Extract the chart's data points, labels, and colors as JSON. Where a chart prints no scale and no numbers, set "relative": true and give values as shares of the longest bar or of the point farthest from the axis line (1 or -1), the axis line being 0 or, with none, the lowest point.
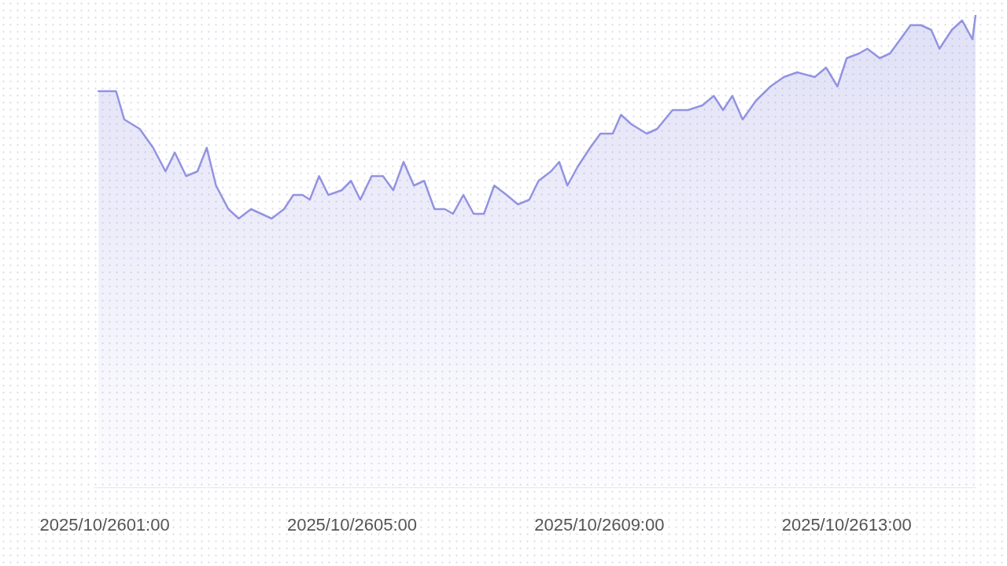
{
  "chart_data": {
    "type": "area",
    "relative": true,
    "marker": "none",
    "line_style": "solid",
    "xlim": [
      "2025-10-26T00:50",
      "2025-10-26T15:05"
    ],
    "xticks": [
      {
        "value": "2025-10-26T01:00",
        "label": "2025/10/2601:00"
      },
      {
        "value": "2025-10-26T05:00",
        "label": "2025/10/2605:00"
      },
      {
        "value": "2025-10-26T09:00",
        "label": "2025/10/2609:00"
      },
      {
        "value": "2025-10-26T13:00",
        "label": "2025/10/2613:00"
      }
    ],
    "series": [
      {
        "color": "#9393e2",
        "x": [
          "2025-10-26T00:54",
          "2025-10-26T01:01",
          "2025-10-26T01:11",
          "2025-10-26T01:19",
          "2025-10-26T01:34",
          "2025-10-26T01:47",
          "2025-10-26T01:59",
          "2025-10-26T02:08",
          "2025-10-26T02:19",
          "2025-10-26T02:30",
          "2025-10-26T02:39",
          "2025-10-26T02:48",
          "2025-10-26T03:00",
          "2025-10-26T03:10",
          "2025-10-26T03:22",
          "2025-10-26T03:32",
          "2025-10-26T03:42",
          "2025-10-26T03:54",
          "2025-10-26T04:03",
          "2025-10-26T04:12",
          "2025-10-26T04:19",
          "2025-10-26T04:28",
          "2025-10-26T04:37",
          "2025-10-26T04:50",
          "2025-10-26T04:59",
          "2025-10-26T05:08",
          "2025-10-26T05:19",
          "2025-10-26T05:30",
          "2025-10-26T05:40",
          "2025-10-26T05:50",
          "2025-10-26T06:00",
          "2025-10-26T06:10",
          "2025-10-26T06:20",
          "2025-10-26T06:30",
          "2025-10-26T06:38",
          "2025-10-26T06:48",
          "2025-10-26T06:58",
          "2025-10-26T07:08",
          "2025-10-26T07:18",
          "2025-10-26T07:30",
          "2025-10-26T07:41",
          "2025-10-26T07:52",
          "2025-10-26T08:01",
          "2025-10-26T08:13",
          "2025-10-26T08:21",
          "2025-10-26T08:29",
          "2025-10-26T08:39",
          "2025-10-26T08:51",
          "2025-10-26T09:01",
          "2025-10-26T09:13",
          "2025-10-26T09:21",
          "2025-10-26T09:31",
          "2025-10-26T09:46",
          "2025-10-26T09:56",
          "2025-10-26T10:11",
          "2025-10-26T10:26",
          "2025-10-26T10:40",
          "2025-10-26T10:51",
          "2025-10-26T11:00",
          "2025-10-26T11:09",
          "2025-10-26T11:19",
          "2025-10-26T11:32",
          "2025-10-26T11:46",
          "2025-10-26T11:59",
          "2025-10-26T12:12",
          "2025-10-26T12:29",
          "2025-10-26T12:40",
          "2025-10-26T12:51",
          "2025-10-26T13:00",
          "2025-10-26T13:12",
          "2025-10-26T13:20",
          "2025-10-26T13:32",
          "2025-10-26T13:42",
          "2025-10-26T13:52",
          "2025-10-26T14:02",
          "2025-10-26T14:12",
          "2025-10-26T14:22",
          "2025-10-26T14:30",
          "2025-10-26T14:42",
          "2025-10-26T14:52",
          "2025-10-26T15:02",
          "2025-10-26T15:05"
        ],
        "values": [
          0.84,
          0.84,
          0.84,
          0.78,
          0.76,
          0.72,
          0.67,
          0.71,
          0.66,
          0.67,
          0.72,
          0.64,
          0.59,
          0.57,
          0.59,
          0.58,
          0.57,
          0.59,
          0.62,
          0.62,
          0.61,
          0.66,
          0.62,
          0.63,
          0.65,
          0.61,
          0.66,
          0.66,
          0.63,
          0.69,
          0.64,
          0.65,
          0.59,
          0.59,
          0.58,
          0.62,
          0.58,
          0.58,
          0.64,
          0.62,
          0.6,
          0.61,
          0.65,
          0.67,
          0.69,
          0.64,
          0.68,
          0.72,
          0.75,
          0.75,
          0.79,
          0.77,
          0.75,
          0.76,
          0.8,
          0.8,
          0.81,
          0.83,
          0.8,
          0.83,
          0.78,
          0.82,
          0.85,
          0.87,
          0.88,
          0.87,
          0.89,
          0.85,
          0.91,
          0.92,
          0.93,
          0.91,
          0.92,
          0.95,
          0.98,
          0.98,
          0.97,
          0.93,
          0.97,
          0.99,
          0.95,
          1
        ]
      }
    ]
  }
}
